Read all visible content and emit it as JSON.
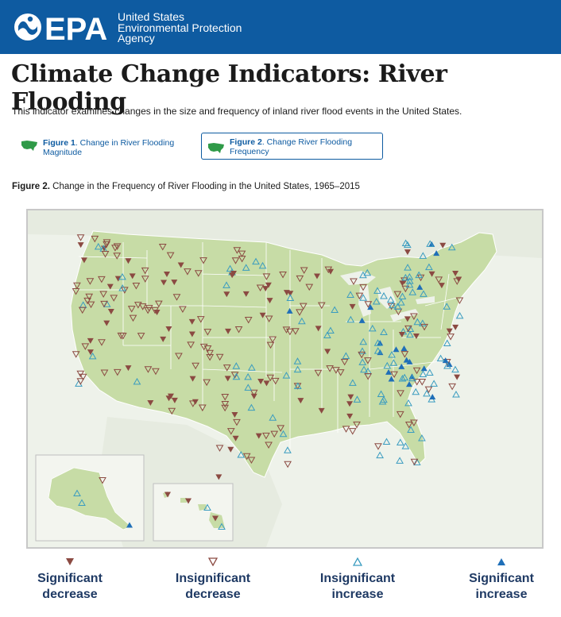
{
  "header": {
    "logo_text": "EPA",
    "agency_lines": [
      "United States",
      "Environmental Protection",
      "Agency"
    ]
  },
  "page": {
    "title": "Climate Change Indicators: River Flooding",
    "intro": "This indicator examines changes in the size and frequency of inland river flood events in the United States."
  },
  "figure_tabs": [
    {
      "bold": "Figure 1",
      "rest": ". Change in River Flooding Magnitude",
      "selected": false
    },
    {
      "bold": "Figure 2",
      "rest": ". Change River Flooding Frequency",
      "selected": true
    }
  ],
  "figure": {
    "caption_bold": "Figure 2.",
    "caption_rest": " Change in the Frequency of River Flooding in the United States, 1965–2015"
  },
  "legend": [
    {
      "label_line1": "Significant",
      "label_line2": "decrease",
      "symbol": "triangle-down-filled"
    },
    {
      "label_line1": "Insignificant",
      "label_line2": "decrease",
      "symbol": "triangle-down-outline"
    },
    {
      "label_line1": "Insignificant",
      "label_line2": "increase",
      "symbol": "triangle-up-outline"
    },
    {
      "label_line1": "Significant",
      "label_line2": "increase",
      "symbol": "triangle-up-filled"
    }
  ],
  "colors": {
    "header_bg": "#0e5ba1",
    "decrease": "#8b4a42",
    "increase": "#1f6fb8",
    "increase_light": "#3a9cc0",
    "land": "#c7dca6",
    "legend_text": "#1f3a64"
  }
}
